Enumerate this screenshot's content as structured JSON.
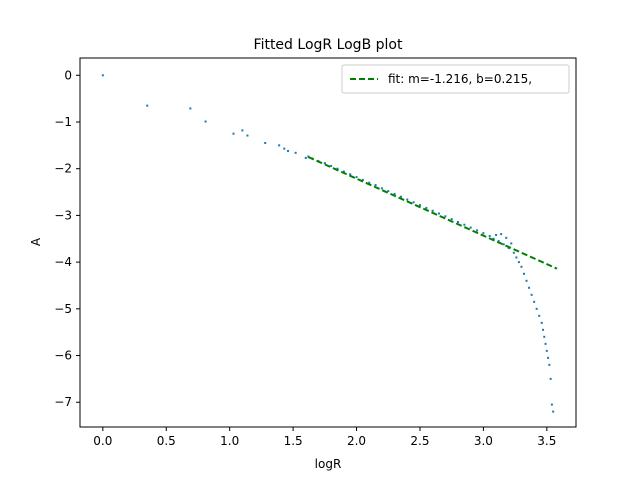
{
  "chart_data": {
    "type": "scatter",
    "title": "Fitted LogR LogB plot",
    "xlabel": "logR",
    "ylabel": "A",
    "xlim": [
      -0.18,
      3.73
    ],
    "ylim": [
      -7.53,
      0.37
    ],
    "xticks": [
      0,
      0.5,
      1.0,
      1.5,
      2.0,
      2.5,
      3.0,
      3.5
    ],
    "xtick_labels": [
      "0.0",
      "0.5",
      "1.0",
      "1.5",
      "2.0",
      "2.5",
      "3.0",
      "3.5"
    ],
    "yticks": [
      0,
      -1,
      -2,
      -3,
      -4,
      -5,
      -6,
      -7
    ],
    "ytick_labels": [
      "0",
      "−1",
      "−2",
      "−3",
      "−4",
      "−5",
      "−6",
      "−7"
    ],
    "grid": false,
    "legend_position": "upper right",
    "colors": {
      "points": "#1f77b4",
      "fit": "#008000"
    },
    "series": [
      {
        "style": "points",
        "color": "#1f77b4",
        "x": [
          0.0,
          0.35,
          0.69,
          0.81,
          1.03,
          1.1,
          1.14,
          1.28,
          1.39,
          1.43,
          1.46,
          1.52,
          1.6,
          1.62,
          1.65,
          1.7,
          1.75,
          1.8,
          1.85,
          1.9,
          1.95,
          2.0,
          2.05,
          2.1,
          2.15,
          2.2,
          2.25,
          2.3,
          2.35,
          2.4,
          2.45,
          2.5,
          2.55,
          2.6,
          2.65,
          2.7,
          2.75,
          2.8,
          2.85,
          2.9,
          2.95,
          3.0,
          3.05,
          3.08,
          3.1,
          3.12,
          3.14,
          3.16,
          3.18,
          3.2,
          3.22,
          3.24,
          3.26,
          3.28,
          3.3,
          3.32,
          3.34,
          3.36,
          3.38,
          3.4,
          3.42,
          3.44,
          3.46,
          3.47,
          3.48,
          3.49,
          3.5,
          3.51,
          3.52,
          3.53,
          3.54,
          3.55
        ],
        "y": [
          0.0,
          -0.65,
          -0.71,
          -0.99,
          -1.25,
          -1.18,
          -1.29,
          -1.45,
          -1.5,
          -1.57,
          -1.62,
          -1.66,
          -1.77,
          -1.74,
          -1.78,
          -1.84,
          -1.88,
          -1.94,
          -2.0,
          -2.06,
          -2.12,
          -2.18,
          -2.24,
          -2.3,
          -2.35,
          -2.42,
          -2.48,
          -2.54,
          -2.6,
          -2.66,
          -2.72,
          -2.78,
          -2.84,
          -2.9,
          -2.96,
          -3.02,
          -3.08,
          -3.14,
          -3.2,
          -3.26,
          -3.32,
          -3.38,
          -3.44,
          -3.5,
          -3.42,
          -3.55,
          -3.4,
          -3.62,
          -3.48,
          -3.7,
          -3.6,
          -3.8,
          -3.9,
          -4.0,
          -4.1,
          -4.25,
          -4.4,
          -4.55,
          -4.7,
          -4.85,
          -5.0,
          -5.15,
          -5.3,
          -5.45,
          -5.6,
          -5.75,
          -5.9,
          -6.05,
          -6.2,
          -6.5,
          -7.05,
          -7.2
        ]
      },
      {
        "name": "fit: m=-1.216, b=0.215,",
        "style": "dashed-line",
        "color": "#008000",
        "x": [
          1.62,
          3.58
        ],
        "y": [
          -1.75,
          -4.14
        ]
      }
    ]
  }
}
